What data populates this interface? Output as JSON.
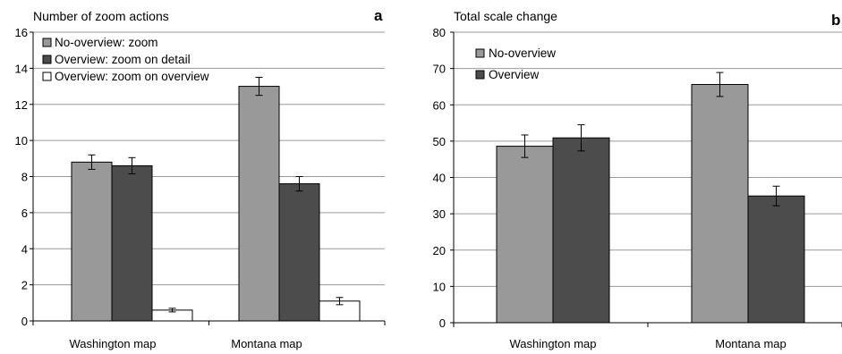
{
  "chart_data": [
    {
      "type": "bar",
      "title": "Number of zoom actions",
      "panel_label": "a",
      "categories": [
        "Washington map",
        "Montana map"
      ],
      "ylim": [
        0,
        16
      ],
      "yticks": [
        0,
        2,
        4,
        6,
        8,
        10,
        12,
        14,
        16
      ],
      "grid": true,
      "legend_position": "top-left",
      "series": [
        {
          "name": "No-overview: zoom",
          "color": "#999999",
          "values": [
            8.8,
            13.0
          ],
          "errors": [
            0.4,
            0.5
          ]
        },
        {
          "name": "Overview: zoom on detail",
          "color": "#4c4c4c",
          "values": [
            8.6,
            7.6
          ],
          "errors": [
            0.45,
            0.4
          ]
        },
        {
          "name": "Overview: zoom on overview",
          "color": "#ffffff",
          "values": [
            0.6,
            1.1
          ],
          "errors": [
            0.1,
            0.2
          ]
        }
      ]
    },
    {
      "type": "bar",
      "title": "Total scale change",
      "panel_label": "b",
      "categories": [
        "Washington map",
        "Montana map"
      ],
      "ylim": [
        0,
        80
      ],
      "yticks": [
        0,
        10,
        20,
        30,
        40,
        50,
        60,
        70,
        80
      ],
      "grid": true,
      "legend_position": "top-left",
      "series": [
        {
          "name": "No-overview",
          "color": "#999999",
          "values": [
            48.6,
            65.6
          ],
          "errors": [
            3.1,
            3.3
          ]
        },
        {
          "name": "Overview",
          "color": "#4c4c4c",
          "values": [
            50.9,
            34.9
          ],
          "errors": [
            3.6,
            2.7
          ]
        }
      ]
    }
  ]
}
